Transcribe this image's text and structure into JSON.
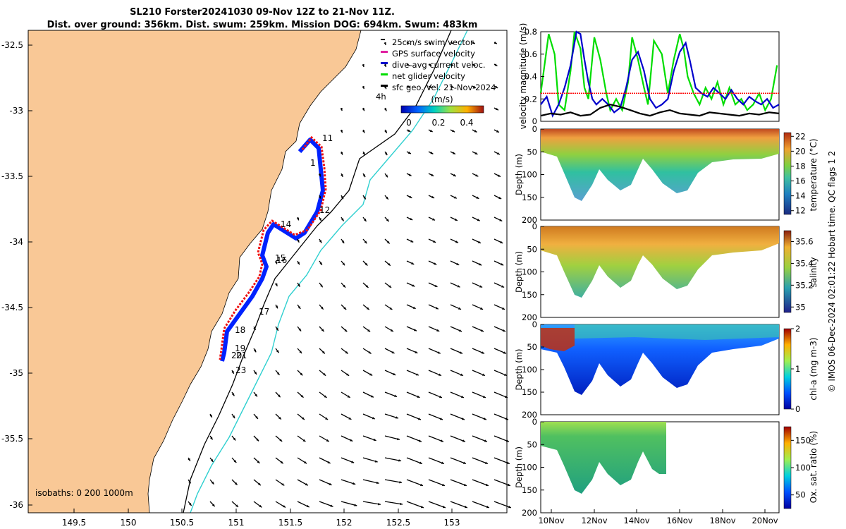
{
  "title_line1": "SL210 Forster20241030 09-Nov 12Z to 21-Nov 11Z.",
  "title_line2": "Dist. over ground: 356km. Dist. swum: 259km. Mission DOG: 694km. Swum: 483km",
  "side_label": "© IMOS 06-Dec-2024 02:01:22 Hobart time. QC flags 1  2",
  "map": {
    "xticks": [
      "149.5",
      "150",
      "150.5",
      "151",
      "151.5",
      "152",
      "152.5",
      "153"
    ],
    "yticks": [
      "-32.5",
      "-33",
      "-33.5",
      "-34",
      "-34.5",
      "-35",
      "-35.5",
      "-36"
    ],
    "legend": [
      "25cm/s swim vector",
      "GPS surface velocity",
      "dive-avg current veloc.",
      "net glider velocity",
      "sfc geo. Vel. 21-Nov-2024"
    ],
    "legend_note": "4h",
    "colorbar_title": "(m/s)",
    "colorbar_ticks": [
      "0",
      "0.2",
      "0.4"
    ],
    "isobaths_label": "isobaths: 0   200  1000m",
    "track_labels": [
      "11",
      "1",
      "12",
      "14",
      "15",
      "16",
      "17",
      "18",
      "19",
      "20",
      "21",
      "23"
    ]
  },
  "chart_data": [
    {
      "type": "line",
      "ylabel": "velocity magnitude (m/s)",
      "ylim": [
        0,
        0.8
      ],
      "yticks": [
        "0",
        "0.2",
        "0.4",
        "0.6",
        "0.8"
      ],
      "xlim_days": [
        9.5,
        21.5
      ],
      "series": [
        {
          "name": "net glider velocity",
          "color": "#00dd00",
          "x": [
            9.5,
            9.9,
            10.2,
            10.4,
            10.7,
            11.0,
            11.2,
            11.5,
            11.7,
            11.9,
            12.2,
            12.5,
            12.8,
            13.0,
            13.3,
            13.6,
            13.9,
            14.1,
            14.4,
            14.7,
            14.9,
            15.2,
            15.6,
            15.9,
            16.2,
            16.5,
            16.7,
            16.9,
            17.2,
            17.5,
            17.8,
            18.1,
            18.4,
            18.7,
            19.0,
            19.3,
            19.6,
            19.9,
            20.2,
            20.5,
            20.8,
            21.1,
            21.4
          ],
          "values": [
            0.25,
            0.78,
            0.6,
            0.15,
            0.1,
            0.45,
            0.8,
            0.65,
            0.3,
            0.2,
            0.75,
            0.55,
            0.25,
            0.1,
            0.2,
            0.1,
            0.35,
            0.75,
            0.55,
            0.3,
            0.15,
            0.72,
            0.6,
            0.25,
            0.55,
            0.78,
            0.65,
            0.4,
            0.25,
            0.15,
            0.3,
            0.2,
            0.35,
            0.15,
            0.3,
            0.15,
            0.2,
            0.1,
            0.15,
            0.25,
            0.1,
            0.2,
            0.5
          ]
        },
        {
          "name": "dive-avg current veloc.",
          "color": "#0000cc",
          "x": [
            9.5,
            9.8,
            10.1,
            10.4,
            10.7,
            11.0,
            11.3,
            11.5,
            11.7,
            11.9,
            12.1,
            12.3,
            12.6,
            12.9,
            13.2,
            13.5,
            13.8,
            14.1,
            14.4,
            14.7,
            15.0,
            15.3,
            15.6,
            15.9,
            16.2,
            16.5,
            16.8,
            17.0,
            17.3,
            17.6,
            17.9,
            18.2,
            18.5,
            18.8,
            19.1,
            19.4,
            19.7,
            20.0,
            20.3,
            20.6,
            20.9,
            21.2,
            21.5
          ],
          "values": [
            0.15,
            0.22,
            0.05,
            0.15,
            0.3,
            0.5,
            0.8,
            0.78,
            0.55,
            0.35,
            0.2,
            0.15,
            0.2,
            0.15,
            0.08,
            0.12,
            0.3,
            0.55,
            0.62,
            0.45,
            0.2,
            0.12,
            0.15,
            0.2,
            0.45,
            0.62,
            0.7,
            0.55,
            0.3,
            0.25,
            0.22,
            0.3,
            0.25,
            0.2,
            0.28,
            0.2,
            0.15,
            0.22,
            0.18,
            0.15,
            0.2,
            0.12,
            0.15
          ]
        },
        {
          "name": "sfc geo. Vel.",
          "color": "#000000",
          "x": [
            9.5,
            10.0,
            10.5,
            11.0,
            11.5,
            12.0,
            12.5,
            13.0,
            13.5,
            14.0,
            14.5,
            15.0,
            15.5,
            16.0,
            16.5,
            17.0,
            17.5,
            18.0,
            18.5,
            19.0,
            19.5,
            20.0,
            20.5,
            21.0,
            21.5
          ],
          "values": [
            0.05,
            0.07,
            0.06,
            0.08,
            0.05,
            0.06,
            0.12,
            0.15,
            0.13,
            0.1,
            0.07,
            0.05,
            0.08,
            0.1,
            0.07,
            0.06,
            0.05,
            0.08,
            0.07,
            0.06,
            0.05,
            0.07,
            0.06,
            0.08,
            0.07
          ]
        },
        {
          "name": "25cm/s reference",
          "color": "#ff0000",
          "x": [
            9.5,
            21.5
          ],
          "values": [
            0.25,
            0.25
          ]
        }
      ]
    },
    {
      "type": "heatmap",
      "ylabel": "Depth (m)",
      "yticks": [
        "0",
        "50",
        "100",
        "150",
        "200"
      ],
      "colorbar_label": "temperature (°C)",
      "colorbar_ticks": [
        "12",
        "14",
        "16",
        "18",
        "20",
        "22"
      ]
    },
    {
      "type": "heatmap",
      "ylabel": "Depth (m)",
      "yticks": [
        "0",
        "50",
        "100",
        "150",
        "200"
      ],
      "colorbar_label": "salinity",
      "colorbar_ticks": [
        "35",
        "35.2",
        "35.4",
        "35.6"
      ]
    },
    {
      "type": "heatmap",
      "ylabel": "Depth (m)",
      "yticks": [
        "0",
        "50",
        "100",
        "150",
        "200"
      ],
      "colorbar_label": "chl-a (mg m-3)",
      "colorbar_ticks": [
        "0",
        "1",
        "2"
      ]
    },
    {
      "type": "heatmap",
      "ylabel": "Depth (m)",
      "yticks": [
        "0",
        "50",
        "100",
        "150",
        "200"
      ],
      "colorbar_label": "Ox. sat. ratio (%)",
      "colorbar_ticks": [
        "50",
        "100",
        "150"
      ],
      "xticks": [
        "10Nov",
        "12Nov",
        "14Nov",
        "16Nov",
        "18Nov",
        "20Nov"
      ]
    }
  ]
}
